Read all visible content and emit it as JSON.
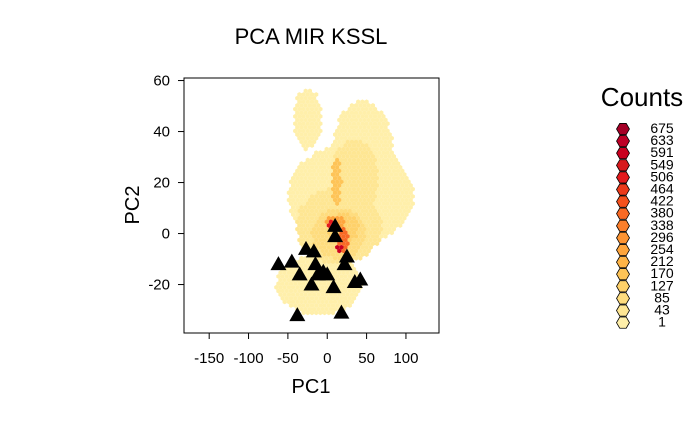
{
  "chart_data": {
    "type": "scatter",
    "subtype": "hexbin",
    "title": "PCA MIR KSSL",
    "xlabel": "PC1",
    "ylabel": "PC2",
    "xlim": [
      -182,
      142
    ],
    "ylim": [
      -39,
      61
    ],
    "xticks": [
      "-150",
      "-100",
      "-50",
      "0",
      "50",
      "100"
    ],
    "xtick_values": [
      -150,
      -100,
      -50,
      0,
      50,
      100
    ],
    "yticks": [
      "-20",
      "0",
      "20",
      "40",
      "60"
    ],
    "ytick_values": [
      -20,
      0,
      20,
      40,
      60
    ],
    "grid": false,
    "legend": {
      "title": "Counts",
      "position": "right",
      "levels": [
        {
          "label": "675",
          "color": "#a50026"
        },
        {
          "label": "633",
          "color": "#bd0026"
        },
        {
          "label": "591",
          "color": "#c9001f"
        },
        {
          "label": "549",
          "color": "#d7191c"
        },
        {
          "label": "506",
          "color": "#e31a1c"
        },
        {
          "label": "464",
          "color": "#ec3a1a"
        },
        {
          "label": "422",
          "color": "#f4511d"
        },
        {
          "label": "380",
          "color": "#f86a25"
        },
        {
          "label": "338",
          "color": "#fc7f2b"
        },
        {
          "label": "296",
          "color": "#fd9433"
        },
        {
          "label": "254",
          "color": "#fea53c"
        },
        {
          "label": "212",
          "color": "#feb447"
        },
        {
          "label": "170",
          "color": "#fec457"
        },
        {
          "label": "127",
          "color": "#fed16a"
        },
        {
          "label": "85",
          "color": "#fedc7e"
        },
        {
          "label": "43",
          "color": "#fee693"
        },
        {
          "label": "1",
          "color": "#ffefaa"
        }
      ]
    },
    "density_regions": [
      {
        "level": "1",
        "cx": 30,
        "cy": 15,
        "rx": 80,
        "ry": 20
      },
      {
        "level": "1",
        "cx": 45,
        "cy": 30,
        "rx": 40,
        "ry": 22
      },
      {
        "level": "1",
        "cx": -25,
        "cy": 45,
        "rx": 18,
        "ry": 12
      },
      {
        "level": "1",
        "cx": -10,
        "cy": -20,
        "rx": 55,
        "ry": 12
      },
      {
        "level": "43",
        "cx": 15,
        "cy": 3,
        "rx": 55,
        "ry": 15
      },
      {
        "level": "43",
        "cx": 35,
        "cy": 22,
        "rx": 30,
        "ry": 15
      },
      {
        "level": "85",
        "cx": 15,
        "cy": 0,
        "rx": 35,
        "ry": 10
      },
      {
        "level": "127",
        "cx": 20,
        "cy": 2,
        "rx": 20,
        "ry": 6
      },
      {
        "level": "170",
        "cx": 12,
        "cy": 20,
        "rx": 6,
        "ry": 10
      },
      {
        "level": "254",
        "cx": 10,
        "cy": 4,
        "rx": 12,
        "ry": 3
      },
      {
        "level": "380",
        "cx": 20,
        "cy": -3,
        "rx": 8,
        "ry": 5
      },
      {
        "level": "506",
        "cx": 5,
        "cy": 3,
        "rx": 7,
        "ry": 2
      },
      {
        "level": "591",
        "cx": 15,
        "cy": -6,
        "rx": 5,
        "ry": 2
      }
    ],
    "reference_points": {
      "marker": "triangle",
      "color": "#000000",
      "x": [
        10,
        10,
        -27,
        -17,
        -45,
        -62,
        -15,
        -5,
        -12,
        0,
        25,
        22,
        -35,
        8,
        -20,
        42,
        35,
        -38,
        18
      ],
      "y": [
        3,
        -1,
        -6,
        -7,
        -11,
        -12,
        -12,
        -15,
        -16,
        -16,
        -9,
        -12,
        -16,
        -21,
        -20,
        -18,
        -19,
        -32,
        -31
      ]
    }
  }
}
